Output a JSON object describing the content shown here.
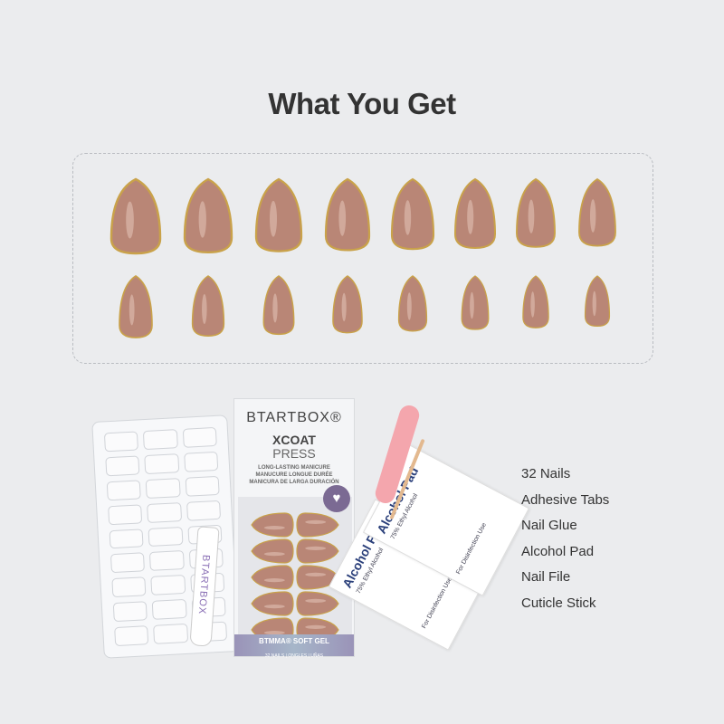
{
  "title": "What You Get",
  "nails": {
    "color": "#b98676",
    "tip_color": "#c9a24a",
    "rows": 2,
    "per_row": 8
  },
  "items": [
    "32 Nails",
    "Adhesive Tabs",
    "Nail Glue",
    "Alcohol Pad",
    "Nail File",
    "Cuticle Stick"
  ],
  "package": {
    "brand": "BTARTBOX®",
    "line1": "XCOAT",
    "line2": "PRESS",
    "taglines": [
      "LONG-LASTING MANICURE",
      "MANUCURE LONGUE DURÉE",
      "MANICURA DE LARGA DURACIÓN"
    ],
    "band_title": "BTMMA® SOFT GEL",
    "band_sub": "32 NAILS | ONGLES | UÑAS"
  },
  "glue_brand": "BTARTBOX",
  "alcohol_pad": {
    "title": "Alcohol Pad",
    "sub": "75% Ethyl Alcohol",
    "use": "For Disinfection Use"
  }
}
